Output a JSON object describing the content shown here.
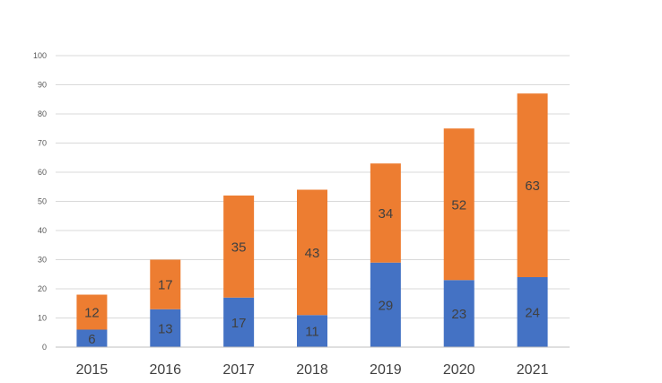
{
  "chart_data": {
    "type": "bar",
    "stacked": true,
    "categories": [
      "2015",
      "2016",
      "2017",
      "2018",
      "2019",
      "2020",
      "2021"
    ],
    "series": [
      {
        "values": [
          6,
          13,
          17,
          11,
          29,
          23,
          24
        ],
        "color": "#4472C4"
      },
      {
        "values": [
          12,
          17,
          35,
          43,
          34,
          52,
          63
        ],
        "color": "#ED7D31"
      }
    ],
    "ylim": [
      0,
      100
    ],
    "yticks": [
      "0",
      "10",
      "20",
      "30",
      "40",
      "50",
      "60",
      "70",
      "80",
      "90",
      "100"
    ],
    "grid": true,
    "legend": "none",
    "data_labels": true
  }
}
